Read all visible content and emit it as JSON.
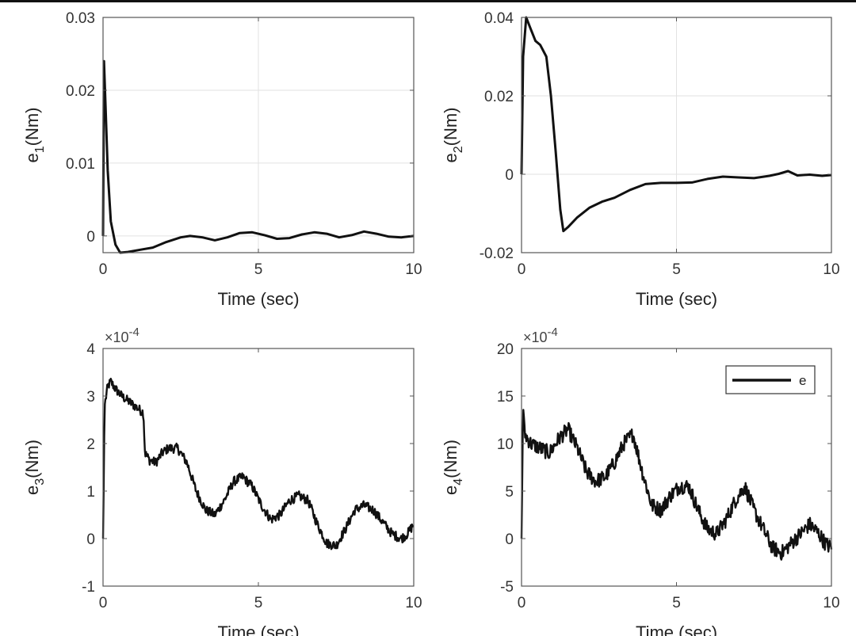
{
  "chart_data": [
    {
      "type": "line",
      "id": "e1",
      "ylabel_main": "e",
      "ylabel_sub": "1",
      "ylabel_unit": "(Nm)",
      "xlabel": "Time (sec)",
      "xlim": [
        0,
        10
      ],
      "ylim": [
        -0.0023,
        0.03
      ],
      "xticks": [
        0,
        5,
        10
      ],
      "xtick_labels": [
        "0",
        "5",
        "10"
      ],
      "yticks": [
        0,
        0.01,
        0.02,
        0.03
      ],
      "ytick_labels": [
        "0",
        "0.01",
        "0.02",
        "0.03"
      ],
      "exponent": "",
      "grid": true,
      "noise": 0,
      "series": [
        {
          "name": "e",
          "x": [
            0,
            0.03,
            0.08,
            0.15,
            0.25,
            0.4,
            0.55,
            0.8,
            1.2,
            1.6,
            2.0,
            2.5,
            2.8,
            3.2,
            3.6,
            4.0,
            4.4,
            4.8,
            5.2,
            5.6,
            6.0,
            6.4,
            6.8,
            7.2,
            7.6,
            8.0,
            8.4,
            8.8,
            9.2,
            9.6,
            10.0
          ],
          "values": [
            0,
            0.024,
            0.018,
            0.009,
            0.002,
            -0.0012,
            -0.0023,
            -0.0022,
            -0.0019,
            -0.0016,
            -0.0009,
            -0.0002,
            0,
            -0.0002,
            -0.0006,
            -0.0002,
            0.0004,
            0.0005,
            0.0001,
            -0.0004,
            -0.0003,
            0.0002,
            0.0005,
            0.0003,
            -0.0002,
            0.0001,
            0.0006,
            0.0003,
            -0.0001,
            -0.0002,
            0
          ]
        }
      ]
    },
    {
      "type": "line",
      "id": "e2",
      "ylabel_main": "e",
      "ylabel_sub": "2",
      "ylabel_unit": "(Nm)",
      "xlabel": "Time (sec)",
      "xlim": [
        0,
        10
      ],
      "ylim": [
        -0.02,
        0.04
      ],
      "xticks": [
        0,
        5,
        10
      ],
      "xtick_labels": [
        "0",
        "5",
        "10"
      ],
      "yticks": [
        -0.02,
        0,
        0.02,
        0.04
      ],
      "ytick_labels": [
        "-0.02",
        "0",
        "0.02",
        "0.04"
      ],
      "exponent": "",
      "grid": true,
      "noise": 0,
      "series": [
        {
          "name": "e",
          "x": [
            0,
            0.05,
            0.15,
            0.3,
            0.45,
            0.6,
            0.8,
            0.95,
            1.1,
            1.25,
            1.35,
            1.5,
            1.8,
            2.2,
            2.6,
            3.0,
            3.5,
            4.0,
            4.5,
            5.0,
            5.5,
            6.0,
            6.5,
            7.0,
            7.5,
            8.0,
            8.3,
            8.6,
            8.9,
            9.3,
            9.7,
            10.0
          ],
          "values": [
            0,
            0.03,
            0.04,
            0.037,
            0.034,
            0.033,
            0.03,
            0.02,
            0.006,
            -0.009,
            -0.0145,
            -0.0135,
            -0.011,
            -0.0085,
            -0.007,
            -0.006,
            -0.004,
            -0.0025,
            -0.0022,
            -0.0022,
            -0.0021,
            -0.0012,
            -0.0006,
            -0.0008,
            -0.001,
            -0.0004,
            0.0001,
            0.0008,
            -0.0003,
            -0.0001,
            -0.0004,
            -0.0002
          ]
        }
      ]
    },
    {
      "type": "line",
      "id": "e3",
      "ylabel_main": "e",
      "ylabel_sub": "3",
      "ylabel_unit": "(Nm)",
      "xlabel": "Time (sec)",
      "xlim": [
        0,
        10
      ],
      "ylim": [
        -1,
        4
      ],
      "xticks": [
        0,
        5,
        10
      ],
      "xtick_labels": [
        "0",
        "5",
        "10"
      ],
      "yticks": [
        -1,
        0,
        1,
        2,
        3,
        4
      ],
      "ytick_labels": [
        "-1",
        "0",
        "1",
        "2",
        "3",
        "4"
      ],
      "exponent": "10",
      "exponent_power": "-4",
      "grid": false,
      "noise": 0.1,
      "series": [
        {
          "name": "e",
          "x": [
            0,
            0.05,
            0.15,
            0.25,
            0.4,
            0.6,
            0.8,
            1.0,
            1.2,
            1.3,
            1.35,
            1.5,
            1.7,
            1.9,
            2.1,
            2.4,
            2.7,
            3.0,
            3.3,
            3.6,
            3.9,
            4.2,
            4.5,
            4.8,
            5.1,
            5.4,
            5.7,
            6.0,
            6.3,
            6.6,
            6.9,
            7.2,
            7.5,
            7.8,
            8.1,
            8.4,
            8.7,
            9.0,
            9.3,
            9.6,
            9.8,
            10.0
          ],
          "values": [
            0,
            2.8,
            3.2,
            3.3,
            3.15,
            3.0,
            2.9,
            2.8,
            2.7,
            2.65,
            1.8,
            1.65,
            1.6,
            1.8,
            1.9,
            1.9,
            1.6,
            1.0,
            0.6,
            0.5,
            0.8,
            1.2,
            1.3,
            1.1,
            0.7,
            0.4,
            0.5,
            0.8,
            0.9,
            0.8,
            0.3,
            -0.1,
            -0.15,
            0.2,
            0.6,
            0.7,
            0.6,
            0.35,
            0.1,
            0.0,
            0.1,
            0.3
          ]
        }
      ]
    },
    {
      "type": "line",
      "id": "e4",
      "ylabel_main": "e",
      "ylabel_sub": "4",
      "ylabel_unit": "(Nm)",
      "xlabel": "Time (sec)",
      "xlim": [
        0,
        10
      ],
      "ylim": [
        -5,
        20
      ],
      "xticks": [
        0,
        5,
        10
      ],
      "xtick_labels": [
        "0",
        "5",
        "10"
      ],
      "yticks": [
        -5,
        0,
        5,
        10,
        15,
        20
      ],
      "ytick_labels": [
        "-5",
        "0",
        "5",
        "10",
        "15",
        "20"
      ],
      "exponent": "10",
      "exponent_power": "-4",
      "grid": false,
      "noise": 0.8,
      "legend": {
        "labels": [
          "e"
        ],
        "location": "top-right"
      },
      "series": [
        {
          "name": "e",
          "x": [
            0,
            0.05,
            0.1,
            0.3,
            0.6,
            0.9,
            1.2,
            1.5,
            1.8,
            2.1,
            2.4,
            2.7,
            3.0,
            3.3,
            3.6,
            3.9,
            4.2,
            4.5,
            4.8,
            5.1,
            5.4,
            5.7,
            6.0,
            6.3,
            6.6,
            6.9,
            7.2,
            7.5,
            7.8,
            8.1,
            8.4,
            8.7,
            9.0,
            9.3,
            9.6,
            9.8,
            10.0
          ],
          "values": [
            0,
            14,
            11,
            10,
            9.5,
            9.0,
            10.5,
            11.5,
            9.5,
            7.0,
            6.0,
            6.5,
            8.0,
            10.0,
            11.0,
            7.0,
            3.5,
            3.0,
            4.5,
            5.5,
            5.5,
            3.0,
            1.0,
            0.5,
            2.0,
            4.0,
            5.5,
            3.0,
            1.0,
            -1.0,
            -1.5,
            -0.5,
            0.5,
            1.5,
            0.5,
            -0.5,
            -1.0
          ]
        }
      ]
    }
  ]
}
